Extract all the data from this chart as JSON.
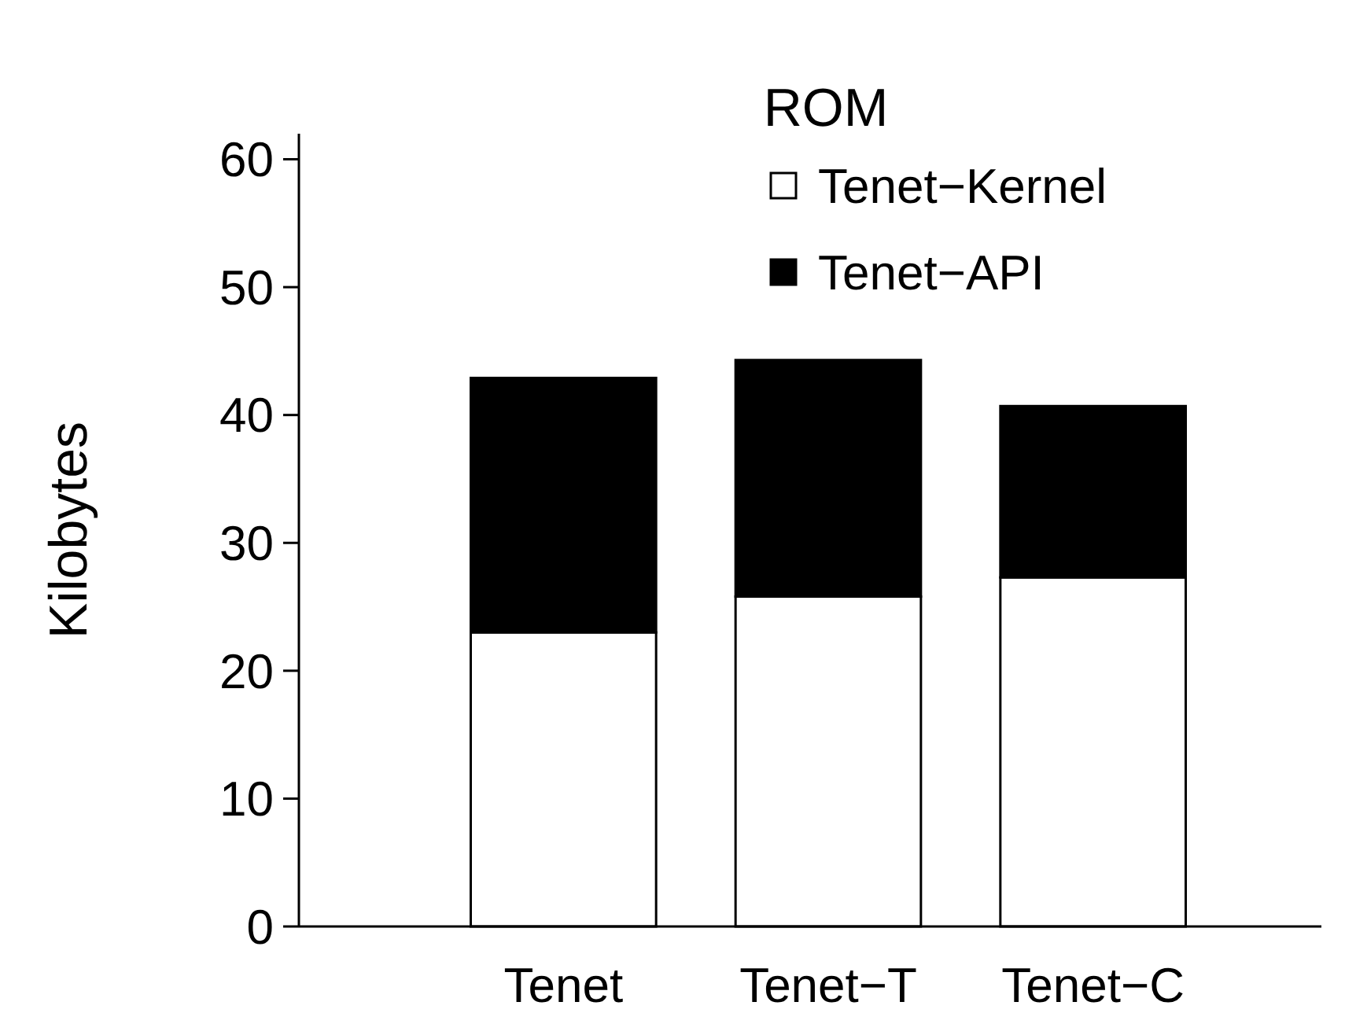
{
  "chart_data": {
    "type": "bar",
    "title": "ROM",
    "ylabel": "Kilobytes",
    "categories": [
      "Tenet",
      "Tenet−T",
      "Tenet−C"
    ],
    "stacked": true,
    "series": [
      {
        "name": "Tenet−Kernel",
        "color": "#ffffff",
        "values": [
          23,
          25.8,
          27.3
        ]
      },
      {
        "name": "Tenet−API",
        "color": "#000000",
        "values": [
          19.9,
          18.5,
          13.4
        ]
      }
    ],
    "ylim": [
      0,
      62
    ],
    "yticks": [
      0,
      10,
      20,
      30,
      40,
      50,
      60
    ],
    "grid": false,
    "legend": "top right"
  }
}
